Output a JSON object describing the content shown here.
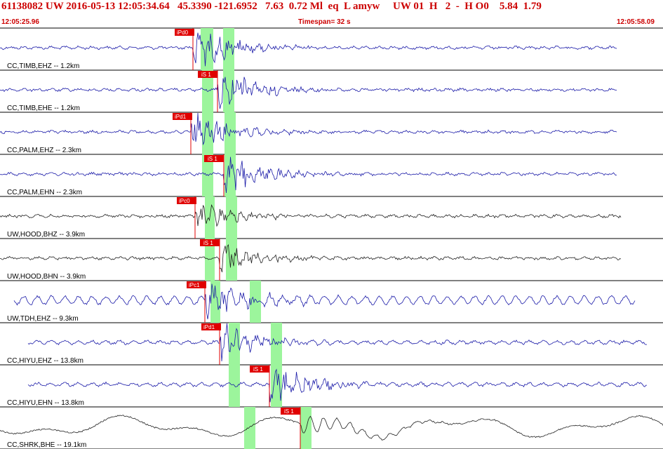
{
  "header": {
    "event_line": "61138082 UW 2016-05-13 12:05:34.64   45.3390 -121.6952   7.63  0.72 Ml  eq  L amyw     UW 01  H   2  -  H O0    5.84  1.79",
    "start_time": "12:05:25.96",
    "timespan": "Timespan=  32 s",
    "end_time": "12:05:58.09"
  },
  "colors": {
    "header_red": "#cc0000",
    "pick_red": "#e00000",
    "window_green": "#9cf59c",
    "trace_blue": "#1a1aa8",
    "trace_black": "#202020"
  },
  "traces": [
    {
      "label": "CC,TIMB,EHZ -- 1.2km",
      "color": "blue",
      "pick": "iPd0",
      "arrival_s": 9.3,
      "amp": 1.0
    },
    {
      "label": "CC,TIMB,EHE -- 1.2km",
      "color": "blue",
      "pick": "iS 1",
      "arrival_s": 10.5,
      "amp": 1.0
    },
    {
      "label": "CC,PALM,EHZ -- 2.3km",
      "color": "blue",
      "pick": "iPd1",
      "arrival_s": 9.2,
      "amp": 0.9
    },
    {
      "label": "CC,PALM,EHN -- 2.3km",
      "color": "blue",
      "pick": "iS 1",
      "arrival_s": 10.8,
      "amp": 0.9
    },
    {
      "label": "UW,HOOD,BHZ -- 3.9km",
      "color": "black",
      "pick": "iPc0",
      "arrival_s": 9.4,
      "amp": 0.7
    },
    {
      "label": "UW,HOOD,BHN -- 3.9km",
      "color": "black",
      "pick": "iS 1",
      "arrival_s": 10.6,
      "amp": 0.7
    },
    {
      "label": "UW,TDH,EHZ -- 9.3km",
      "color": "blue",
      "pick": "iPc1",
      "arrival_s": 9.9,
      "amp": 0.9
    },
    {
      "label": "CC,HIYU,EHZ -- 13.8km",
      "color": "blue",
      "pick": "iPd1",
      "arrival_s": 10.6,
      "amp": 0.9
    },
    {
      "label": "CC,HIYU,EHN -- 13.8km",
      "color": "blue",
      "pick": "iS 1",
      "arrival_s": 13.0,
      "amp": 0.9
    },
    {
      "label": "CC,SHRK,BHE -- 19.1km",
      "color": "black",
      "pick": "iS 1",
      "arrival_s": 14.5,
      "amp": 0.8
    }
  ]
}
